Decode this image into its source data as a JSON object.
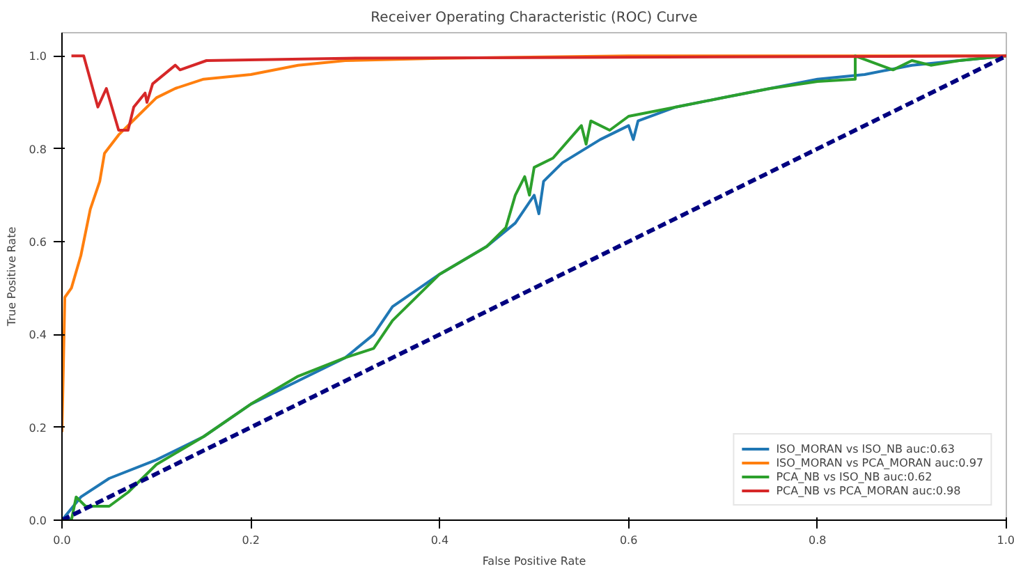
{
  "chart_data": {
    "type": "line",
    "title": "Receiver Operating Characteristic (ROC) Curve",
    "xlabel": "False Positive Rate",
    "ylabel": "True Positive Rate",
    "xlim": [
      0,
      1
    ],
    "ylim": [
      0,
      1.05
    ],
    "xticks": [
      {
        "value": 0,
        "label": "0.0"
      },
      0.2,
      0.4,
      0.6,
      0.8,
      {
        "value": 1,
        "label": "1.0"
      }
    ],
    "yticks": [
      {
        "value": 0,
        "label": "0.0"
      },
      0.2,
      0.4,
      0.6,
      0.8,
      {
        "value": 1,
        "label": "1.0"
      }
    ],
    "grid": false,
    "legend": "bottom right",
    "line_style": "solid",
    "series": [
      {
        "name": "ISO_MORAN vs ISO_NB auc:0.63",
        "color": "#1f77b4",
        "x": [
          0,
          0.02,
          0.05,
          0.1,
          0.15,
          0.2,
          0.25,
          0.3,
          0.33,
          0.35,
          0.4,
          0.45,
          0.48,
          0.5,
          0.505,
          0.51,
          0.53,
          0.57,
          0.6,
          0.605,
          0.61,
          0.65,
          0.7,
          0.75,
          0.8,
          0.85,
          0.9,
          0.95,
          1
        ],
        "values": [
          0,
          0.05,
          0.09,
          0.13,
          0.18,
          0.25,
          0.3,
          0.35,
          0.4,
          0.46,
          0.53,
          0.59,
          0.64,
          0.7,
          0.66,
          0.73,
          0.77,
          0.82,
          0.85,
          0.82,
          0.86,
          0.89,
          0.91,
          0.93,
          0.95,
          0.96,
          0.98,
          0.99,
          1
        ]
      },
      {
        "name": "ISO_MORAN vs PCA_MORAN auc:0.97",
        "color": "#ff7f0e",
        "x": [
          0,
          0.003,
          0.01,
          0.02,
          0.03,
          0.04,
          0.045,
          0.06,
          0.08,
          0.1,
          0.12,
          0.15,
          0.2,
          0.25,
          0.3,
          0.4,
          0.6,
          1
        ],
        "values": [
          0.19,
          0.48,
          0.5,
          0.57,
          0.67,
          0.73,
          0.79,
          0.83,
          0.87,
          0.91,
          0.93,
          0.95,
          0.96,
          0.98,
          0.99,
          0.995,
          1,
          1
        ]
      },
      {
        "name": "PCA_NB vs ISO_NB auc:0.62",
        "color": "#2ca02c",
        "x": [
          0,
          0.01,
          0.015,
          0.025,
          0.05,
          0.07,
          0.1,
          0.15,
          0.2,
          0.25,
          0.3,
          0.33,
          0.35,
          0.4,
          0.45,
          0.47,
          0.48,
          0.49,
          0.495,
          0.5,
          0.52,
          0.55,
          0.555,
          0.56,
          0.58,
          0.6,
          0.65,
          0.7,
          0.75,
          0.8,
          0.84,
          0.84,
          0.88,
          0.9,
          0.92,
          0.95,
          1
        ],
        "values": [
          0,
          0,
          0.05,
          0.03,
          0.03,
          0.06,
          0.12,
          0.18,
          0.25,
          0.31,
          0.35,
          0.37,
          0.43,
          0.53,
          0.59,
          0.63,
          0.7,
          0.74,
          0.7,
          0.76,
          0.78,
          0.85,
          0.81,
          0.86,
          0.84,
          0.87,
          0.89,
          0.91,
          0.93,
          0.945,
          0.95,
          1,
          0.97,
          0.99,
          0.98,
          0.99,
          1
        ]
      },
      {
        "name": "PCA_NB vs PCA_MORAN auc:0.98",
        "color": "#d62728",
        "x": [
          0.01,
          0.023,
          0.038,
          0.047,
          0.06,
          0.07,
          0.076,
          0.088,
          0.09,
          0.096,
          0.12,
          0.125,
          0.153,
          0.3,
          1
        ],
        "values": [
          1,
          1,
          0.89,
          0.93,
          0.84,
          0.84,
          0.89,
          0.92,
          0.9,
          0.94,
          0.98,
          0.97,
          0.99,
          0.995,
          1
        ]
      },
      {
        "color": "#000080",
        "x": [
          0,
          1
        ],
        "values": [
          0,
          1
        ],
        "line_style": "dashed"
      }
    ]
  }
}
